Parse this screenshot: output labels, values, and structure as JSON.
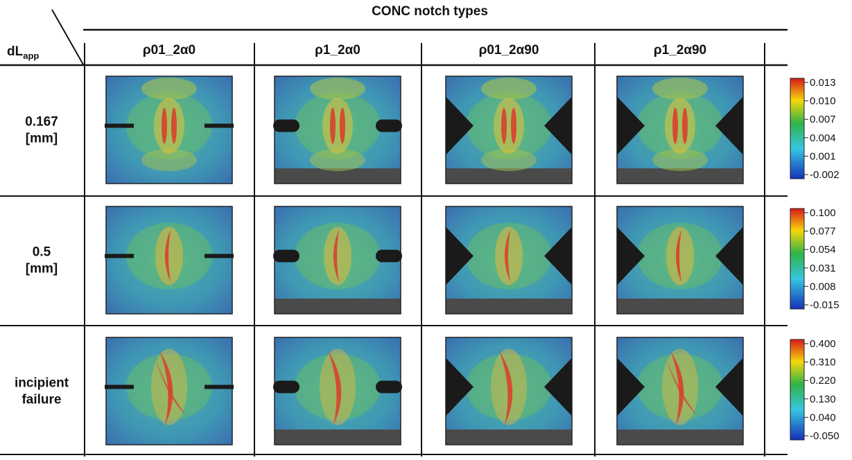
{
  "header": {
    "title": "CONC notch types"
  },
  "corner": {
    "main": "dL",
    "subscript": "app"
  },
  "columns": [
    "ρ01_2α0",
    "ρ1_2α0",
    "ρ01_2α90",
    "ρ1_2α90"
  ],
  "rows": [
    {
      "label": [
        "0.167",
        "[mm]"
      ],
      "colorbar": [
        "0.013",
        "0.010",
        "0.007",
        "0.004",
        "0.001",
        "-0.002"
      ]
    },
    {
      "label": [
        "0.5",
        "[mm]"
      ],
      "colorbar": [
        "0.100",
        "0.077",
        "0.054",
        "0.031",
        "0.008",
        "-0.015"
      ]
    },
    {
      "label": [
        "incipient",
        "failure"
      ],
      "colorbar": [
        "0.400",
        "0.310",
        "0.220",
        "0.130",
        "0.040",
        "-0.050"
      ]
    }
  ]
}
